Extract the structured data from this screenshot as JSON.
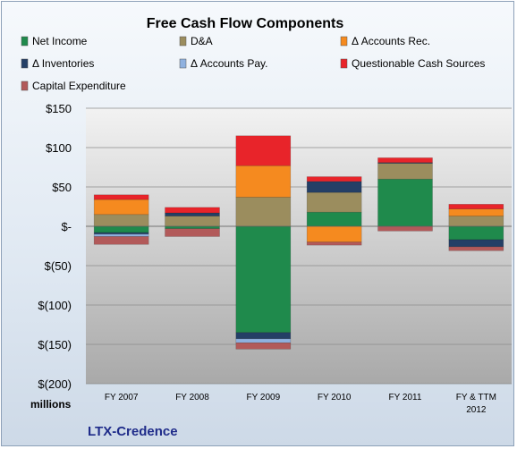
{
  "chart_data": {
    "type": "bar",
    "stacked": true,
    "title": "Free Cash Flow Components",
    "units_label": "millions",
    "brand": "LTX-Credence",
    "categories": [
      [
        "FY 2007"
      ],
      [
        "FY 2008"
      ],
      [
        "FY 2009"
      ],
      [
        "FY 2010"
      ],
      [
        "FY 2011"
      ],
      [
        "FY & TTM",
        "2012"
      ]
    ],
    "y_ticks": [
      "$150",
      "$100",
      "$50",
      "$-",
      "$(50)",
      "$(100)",
      "$(150)",
      "$(200)"
    ],
    "ylim": [
      -200,
      150
    ],
    "grid": true,
    "legend_position": "top",
    "series": [
      {
        "name": "Net Income",
        "color": "#1f8a4c",
        "values": [
          -8,
          -3,
          -135,
          18,
          60,
          -17
        ]
      },
      {
        "name": "D&A",
        "color": "#9b8d5e",
        "values": [
          15,
          13,
          37,
          25,
          20,
          13
        ]
      },
      {
        "name": "Δ Accounts Rec.",
        "color": "#f58a1f",
        "values": [
          19,
          0,
          40,
          -20,
          0,
          9
        ]
      },
      {
        "name": "Δ Inventories",
        "color": "#243f66",
        "values": [
          -2,
          4,
          -8,
          14,
          1,
          -9
        ]
      },
      {
        "name": "Δ Accounts Pay.",
        "color": "#8fb1df",
        "values": [
          -3,
          0,
          -5,
          0,
          0,
          0
        ]
      },
      {
        "name": "Questionable Cash Sources",
        "color": "#e8242a",
        "values": [
          6,
          7,
          38,
          6,
          6,
          6
        ]
      },
      {
        "name": "Capital Expenditure",
        "color": "#b25a5a",
        "values": [
          -10,
          -10,
          -8,
          -4,
          -6,
          -5
        ]
      }
    ]
  }
}
